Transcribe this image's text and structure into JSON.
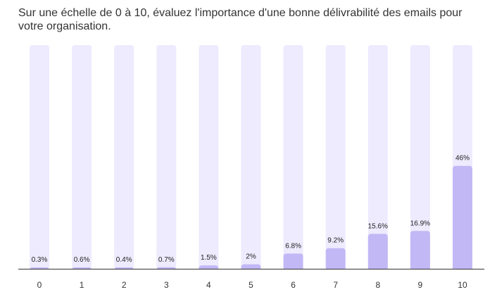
{
  "chart_data": {
    "type": "bar",
    "title": "Sur une échelle de 0 à 10, évaluez l'importance d'une bonne délivrabilité des emails pour votre organisation.",
    "xlabel": "",
    "ylabel": "",
    "ylim": [
      0,
      100
    ],
    "categories": [
      "0",
      "1",
      "2",
      "3",
      "4",
      "5",
      "6",
      "7",
      "8",
      "9",
      "10"
    ],
    "values": [
      0.3,
      0.6,
      0.4,
      0.7,
      1.5,
      2,
      6.8,
      9.2,
      15.6,
      16.9,
      46
    ],
    "value_labels": [
      "0.3%",
      "0.6%",
      "0.4%",
      "0.7%",
      "1.5%",
      "2%",
      "6.8%",
      "9.2%",
      "15.6%",
      "16.9%",
      "46%"
    ],
    "unit": "%",
    "grid": false,
    "legend": "none",
    "colors": {
      "bar": "#c2b8f6",
      "track": "#edebfd",
      "axis": "#333333",
      "title": "#333333"
    }
  }
}
